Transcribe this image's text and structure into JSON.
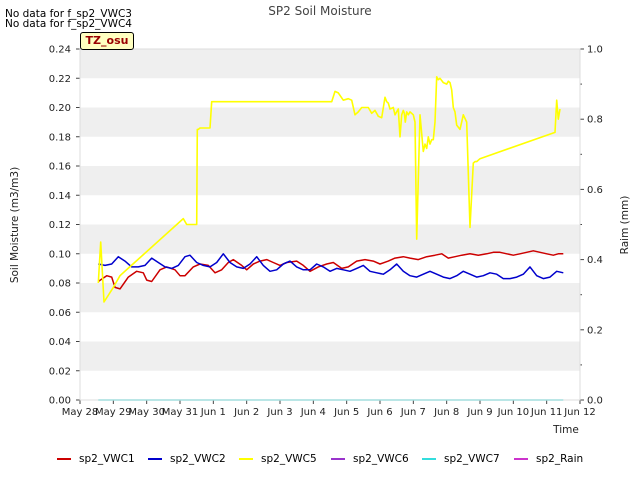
{
  "no_data_messages": [
    "No data for f_sp2_VWC3",
    "No data for f_sp2_VWC4"
  ],
  "tz_label": "TZ_osu",
  "chart_data": {
    "type": "line",
    "title": "SP2 Soil Moisture",
    "xlabel": "Time",
    "ylabel": "Soil Moisture (m3/m3)",
    "y2label": "Raim (mm)",
    "xlim": [
      0,
      15
    ],
    "ylim": [
      0,
      0.24
    ],
    "y2lim": [
      0,
      1.0
    ],
    "x_ticks": [
      0,
      1,
      2,
      3,
      4,
      5,
      6,
      7,
      8,
      9,
      10,
      11,
      12,
      13,
      14,
      15
    ],
    "x_tick_labels": [
      "May 28",
      "May 29",
      "May 30",
      "May 31",
      "Jun 1",
      "Jun 2",
      "Jun 3",
      "Jun 4",
      "Jun 5",
      "Jun 6",
      "Jun 7",
      "Jun 8",
      "Jun 9",
      "Jun 10",
      "Jun 11",
      "Jun 12"
    ],
    "y_ticks": [
      0.0,
      0.02,
      0.04,
      0.06,
      0.08,
      0.1,
      0.12,
      0.14,
      0.16,
      0.18,
      0.2,
      0.22,
      0.24
    ],
    "y_tick_labels": [
      "0.00",
      "0.02",
      "0.04",
      "0.06",
      "0.08",
      "0.10",
      "0.12",
      "0.14",
      "0.16",
      "0.18",
      "0.20",
      "0.22",
      "0.24"
    ],
    "y2_ticks": [
      0.0,
      0.2,
      0.4,
      0.6,
      0.8,
      1.0
    ],
    "y2_tick_labels": [
      "0.0",
      "0.2",
      "0.4",
      "0.6",
      "0.8",
      "1.0"
    ],
    "grid": "horizontal bands",
    "legend_position": "bottom",
    "series": [
      {
        "name": "sp2_VWC1",
        "color": "#cc0000",
        "axis": "left",
        "x": [
          0.55,
          0.8,
          0.95,
          1.05,
          1.2,
          1.45,
          1.7,
          1.9,
          2.0,
          2.15,
          2.4,
          2.6,
          2.85,
          3.0,
          3.15,
          3.4,
          3.6,
          3.85,
          4.05,
          4.25,
          4.45,
          4.6,
          4.85,
          5.0,
          5.2,
          5.4,
          5.6,
          5.8,
          6.0,
          6.2,
          6.5,
          6.7,
          6.9,
          7.15,
          7.4,
          7.6,
          7.85,
          8.05,
          8.3,
          8.55,
          8.8,
          9.0,
          9.25,
          9.45,
          9.7,
          9.9,
          10.15,
          10.4,
          10.65,
          10.85,
          11.05,
          11.25,
          11.45,
          11.7,
          11.95,
          12.2,
          12.4,
          12.6,
          12.8,
          13.0,
          13.2,
          13.4,
          13.6,
          13.8,
          14.0,
          14.2,
          14.35,
          14.5
        ],
        "values": [
          0.081,
          0.085,
          0.084,
          0.077,
          0.076,
          0.084,
          0.088,
          0.087,
          0.082,
          0.081,
          0.089,
          0.091,
          0.089,
          0.085,
          0.085,
          0.091,
          0.093,
          0.092,
          0.087,
          0.089,
          0.094,
          0.096,
          0.092,
          0.089,
          0.093,
          0.095,
          0.096,
          0.094,
          0.092,
          0.094,
          0.095,
          0.092,
          0.088,
          0.091,
          0.093,
          0.094,
          0.09,
          0.091,
          0.095,
          0.096,
          0.095,
          0.093,
          0.095,
          0.097,
          0.098,
          0.097,
          0.096,
          0.098,
          0.099,
          0.1,
          0.097,
          0.098,
          0.099,
          0.1,
          0.099,
          0.1,
          0.101,
          0.101,
          0.1,
          0.099,
          0.1,
          0.101,
          0.102,
          0.101,
          0.1,
          0.099,
          0.1,
          0.1
        ]
      },
      {
        "name": "sp2_VWC2",
        "color": "#0000cc",
        "axis": "left",
        "x": [
          0.55,
          0.75,
          0.95,
          1.15,
          1.35,
          1.55,
          1.75,
          1.95,
          2.15,
          2.35,
          2.55,
          2.75,
          2.95,
          3.15,
          3.3,
          3.5,
          3.7,
          3.9,
          4.1,
          4.3,
          4.5,
          4.7,
          4.9,
          5.1,
          5.3,
          5.5,
          5.7,
          5.9,
          6.1,
          6.3,
          6.5,
          6.7,
          6.9,
          7.1,
          7.3,
          7.5,
          7.7,
          7.9,
          8.1,
          8.3,
          8.5,
          8.7,
          8.9,
          9.1,
          9.3,
          9.5,
          9.7,
          9.9,
          10.1,
          10.3,
          10.5,
          10.7,
          10.9,
          11.1,
          11.3,
          11.5,
          11.7,
          11.9,
          12.1,
          12.3,
          12.5,
          12.7,
          12.9,
          13.1,
          13.3,
          13.5,
          13.7,
          13.9,
          14.1,
          14.3,
          14.5
        ],
        "values": [
          0.093,
          0.092,
          0.093,
          0.098,
          0.095,
          0.091,
          0.091,
          0.092,
          0.097,
          0.094,
          0.091,
          0.09,
          0.092,
          0.098,
          0.099,
          0.094,
          0.092,
          0.091,
          0.094,
          0.1,
          0.094,
          0.091,
          0.09,
          0.093,
          0.098,
          0.092,
          0.088,
          0.089,
          0.093,
          0.095,
          0.091,
          0.089,
          0.089,
          0.093,
          0.091,
          0.088,
          0.09,
          0.089,
          0.088,
          0.09,
          0.092,
          0.088,
          0.087,
          0.086,
          0.089,
          0.093,
          0.088,
          0.085,
          0.084,
          0.086,
          0.088,
          0.086,
          0.084,
          0.083,
          0.085,
          0.088,
          0.086,
          0.084,
          0.085,
          0.087,
          0.086,
          0.083,
          0.083,
          0.084,
          0.086,
          0.091,
          0.085,
          0.083,
          0.084,
          0.088,
          0.087
        ]
      },
      {
        "name": "sp2_VWC5",
        "color": "#ffff00",
        "axis": "left",
        "x": [
          0.55,
          0.62,
          0.72,
          1.0,
          1.2,
          3.1,
          3.2,
          3.5,
          3.52,
          3.55,
          3.6,
          3.9,
          3.95,
          4.1,
          7.5,
          7.55,
          7.65,
          7.75,
          7.9,
          8.05,
          8.15,
          8.25,
          8.35,
          8.45,
          8.55,
          8.65,
          8.75,
          8.85,
          8.95,
          9.05,
          9.15,
          9.2,
          9.25,
          9.3,
          9.4,
          9.45,
          9.55,
          9.6,
          9.65,
          9.7,
          9.73,
          9.76,
          9.8,
          9.85,
          9.9,
          10.0,
          10.05,
          10.1,
          10.2,
          10.3,
          10.35,
          10.4,
          10.45,
          10.5,
          10.55,
          10.6,
          10.65,
          10.7,
          10.75,
          10.8,
          10.9,
          11.0,
          11.05,
          11.1,
          11.15,
          11.2,
          11.25,
          11.3,
          11.4,
          11.5,
          11.6,
          11.7,
          11.8,
          11.85,
          11.9,
          11.95,
          12.0,
          14.25,
          14.3,
          14.35,
          14.4
        ],
        "values": [
          0.08,
          0.108,
          0.067,
          0.077,
          0.085,
          0.124,
          0.12,
          0.12,
          0.185,
          0.185,
          0.186,
          0.186,
          0.204,
          0.204,
          0.204,
          0.204,
          0.211,
          0.21,
          0.205,
          0.206,
          0.205,
          0.195,
          0.197,
          0.2,
          0.2,
          0.2,
          0.196,
          0.198,
          0.194,
          0.193,
          0.207,
          0.204,
          0.203,
          0.199,
          0.2,
          0.195,
          0.199,
          0.18,
          0.195,
          0.198,
          0.196,
          0.19,
          0.197,
          0.195,
          0.197,
          0.195,
          0.19,
          0.11,
          0.195,
          0.17,
          0.175,
          0.172,
          0.18,
          0.175,
          0.178,
          0.178,
          0.19,
          0.221,
          0.219,
          0.22,
          0.217,
          0.216,
          0.218,
          0.217,
          0.212,
          0.2,
          0.197,
          0.188,
          0.185,
          0.195,
          0.19,
          0.118,
          0.162,
          0.163,
          0.163,
          0.164,
          0.165,
          0.183,
          0.205,
          0.192,
          0.199
        ]
      },
      {
        "name": "sp2_VWC6",
        "color": "#9933cc",
        "axis": "left",
        "x": [],
        "values": []
      },
      {
        "name": "sp2_VWC7",
        "color": "#33dddd",
        "axis": "left",
        "x": [
          0.55,
          14.5
        ],
        "values": [
          0.0,
          0.0
        ]
      },
      {
        "name": "sp2_Rain",
        "color": "#cc33cc",
        "axis": "right",
        "x": [],
        "values": []
      }
    ]
  }
}
